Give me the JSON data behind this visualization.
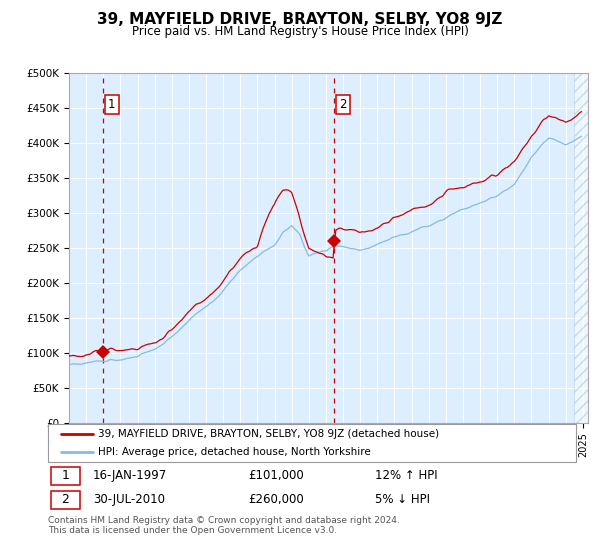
{
  "title": "39, MAYFIELD DRIVE, BRAYTON, SELBY, YO8 9JZ",
  "subtitle": "Price paid vs. HM Land Registry's House Price Index (HPI)",
  "legend_line1": "39, MAYFIELD DRIVE, BRAYTON, SELBY, YO8 9JZ (detached house)",
  "legend_line2": "HPI: Average price, detached house, North Yorkshire",
  "transaction1_date": "16-JAN-1997",
  "transaction1_price": 101000,
  "transaction1_hpi": "12% ↑ HPI",
  "transaction2_date": "30-JUL-2010",
  "transaction2_price": 260000,
  "transaction2_hpi": "5% ↓ HPI",
  "footnote1": "Contains HM Land Registry data © Crown copyright and database right 2024.",
  "footnote2": "This data is licensed under the Open Government Licence v3.0.",
  "ylim": [
    0,
    500000
  ],
  "year_start": 1995,
  "year_end": 2025,
  "hpi_color": "#88bbdd",
  "price_color": "#cc0000",
  "bg_color": "#ddeeff",
  "transaction1_month": 24,
  "transaction2_month": 186,
  "marker_size": 7
}
